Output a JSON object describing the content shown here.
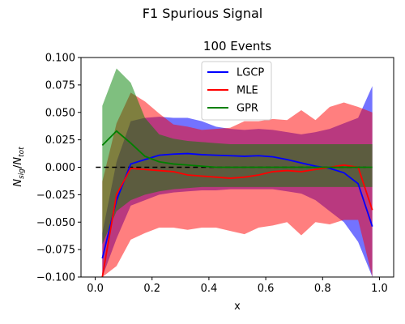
{
  "figure_title": "F1 Spurious Signal",
  "chart_data": {
    "type": "line",
    "title": "100 Events",
    "xlabel": "x",
    "ylabel_main": "N",
    "ylabel_num_sub": "sig",
    "ylabel_sep": "/",
    "ylabel_den_main": "N",
    "ylabel_den_sub": "tot",
    "xlim": [
      -0.05,
      1.05
    ],
    "ylim": [
      -0.1,
      0.1
    ],
    "xticks": [
      0.0,
      0.2,
      0.4,
      0.6,
      0.8,
      1.0
    ],
    "xtick_labels": [
      "0.0",
      "0.2",
      "0.4",
      "0.6",
      "0.8",
      "1.0"
    ],
    "yticks": [
      -0.1,
      -0.075,
      -0.05,
      -0.025,
      0.0,
      0.025,
      0.05,
      0.075,
      0.1
    ],
    "ytick_labels": [
      "−0.100",
      "−0.075",
      "−0.050",
      "−0.025",
      "0.000",
      "0.025",
      "0.050",
      "0.075",
      "0.100"
    ],
    "grid": false,
    "legend_position": "top-center",
    "reference_line": {
      "y": 0.0,
      "style": "dashed",
      "color": "#000000"
    },
    "x": [
      0.025,
      0.075,
      0.125,
      0.175,
      0.225,
      0.275,
      0.325,
      0.375,
      0.425,
      0.475,
      0.525,
      0.575,
      0.625,
      0.675,
      0.725,
      0.775,
      0.825,
      0.875,
      0.925,
      0.975
    ],
    "series": [
      {
        "name": "LGCP",
        "color": "#0000ff",
        "band_opacity": 0.55,
        "values": [
          -0.083,
          -0.03,
          0.003,
          0.007,
          0.011,
          0.012,
          0.0125,
          0.0115,
          0.011,
          0.0105,
          0.01,
          0.0105,
          0.0095,
          0.007,
          0.004,
          0.001,
          -0.001,
          -0.005,
          -0.015,
          -0.054
        ],
        "lower": [
          -0.1,
          -0.065,
          -0.035,
          -0.03,
          -0.025,
          -0.023,
          -0.022,
          -0.021,
          -0.021,
          -0.02,
          -0.02,
          -0.02,
          -0.02,
          -0.022,
          -0.024,
          -0.03,
          -0.04,
          -0.05,
          -0.068,
          -0.1
        ],
        "upper": [
          -0.06,
          0.005,
          0.042,
          0.045,
          0.046,
          0.045,
          0.045,
          0.042,
          0.037,
          0.035,
          0.034,
          0.035,
          0.034,
          0.032,
          0.03,
          0.032,
          0.035,
          0.04,
          0.045,
          0.074
        ]
      },
      {
        "name": "MLE",
        "color": "#ff0000",
        "band_opacity": 0.5,
        "values": [
          -0.1,
          -0.025,
          -0.001,
          -0.002,
          -0.003,
          -0.004,
          -0.007,
          -0.008,
          -0.009,
          -0.01,
          -0.009,
          -0.007,
          -0.004,
          -0.003,
          -0.004,
          -0.002,
          0.0,
          0.002,
          0.0,
          -0.039
        ],
        "lower": [
          -0.1,
          -0.09,
          -0.066,
          -0.06,
          -0.055,
          -0.055,
          -0.057,
          -0.055,
          -0.055,
          -0.058,
          -0.061,
          -0.055,
          -0.053,
          -0.05,
          -0.062,
          -0.05,
          -0.052,
          -0.048,
          -0.048,
          -0.1
        ],
        "upper": [
          -0.013,
          0.04,
          0.068,
          0.06,
          0.049,
          0.039,
          0.037,
          0.034,
          0.035,
          0.036,
          0.042,
          0.042,
          0.044,
          0.043,
          0.052,
          0.043,
          0.055,
          0.059,
          0.055,
          0.05
        ]
      },
      {
        "name": "GPR",
        "color": "#008000",
        "band_opacity": 0.5,
        "values": [
          0.02,
          0.033,
          0.022,
          0.01,
          0.005,
          0.003,
          0.002,
          0.001,
          0.0,
          0.0,
          0.0,
          0.0,
          0.0,
          0.0,
          0.0,
          0.0,
          0.0,
          0.0,
          0.0,
          0.0
        ],
        "lower": [
          -0.07,
          -0.04,
          -0.03,
          -0.025,
          -0.022,
          -0.02,
          -0.019,
          -0.018,
          -0.018,
          -0.018,
          -0.018,
          -0.018,
          -0.018,
          -0.018,
          -0.018,
          -0.018,
          -0.018,
          -0.018,
          -0.018,
          -0.018
        ],
        "upper": [
          0.056,
          0.09,
          0.077,
          0.045,
          0.03,
          0.026,
          0.024,
          0.023,
          0.022,
          0.021,
          0.021,
          0.021,
          0.021,
          0.021,
          0.021,
          0.021,
          0.021,
          0.021,
          0.021,
          0.021
        ]
      }
    ]
  }
}
